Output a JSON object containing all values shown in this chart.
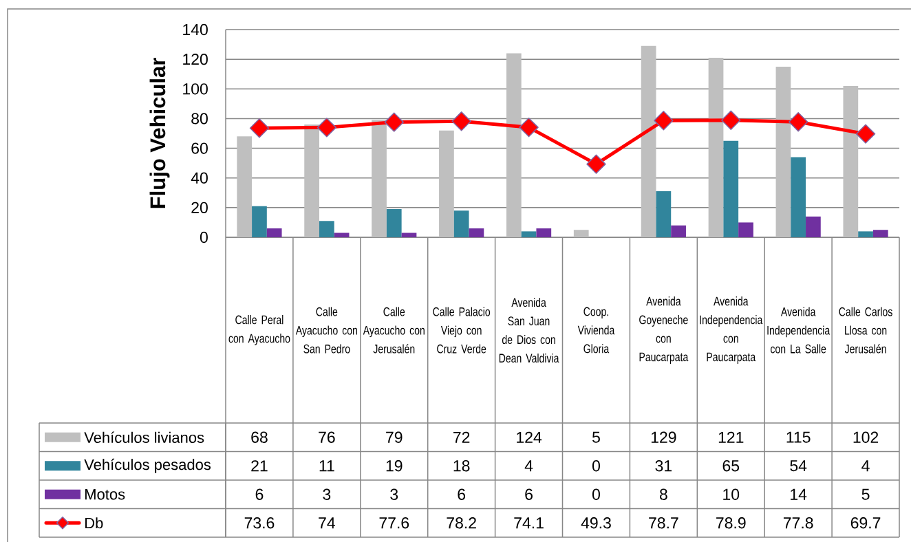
{
  "chart_data": {
    "type": "bar",
    "ylabel": "Flujo Vehicular",
    "categories": [
      "Calle Peral con Ayacucho",
      "Calle Ayacucho con San Pedro",
      "Calle Ayacucho con Jerusalén",
      "Calle Palacio Viejo con Cruz Verde",
      "Avenida San Juan de Dios con Dean Valdivia",
      "Coop. Vivienda Gloria",
      "Avenida Goyeneche con Paucarpata",
      "Avenida Independencia con Paucarpata",
      "Avenida Independencia con La Salle",
      "Calle Carlos Llosa con Jerusalén"
    ],
    "series": [
      {
        "name": "Vehículos livianos",
        "color": "#bfbfbf",
        "values": [
          68,
          76,
          79,
          72,
          124,
          5,
          129,
          121,
          115,
          102
        ]
      },
      {
        "name": "Vehículos pesados",
        "color": "#31859c",
        "values": [
          21,
          11,
          19,
          18,
          4,
          0,
          31,
          65,
          54,
          4
        ]
      },
      {
        "name": "Motos",
        "color": "#7030a0",
        "values": [
          6,
          3,
          3,
          6,
          6,
          0,
          8,
          10,
          14,
          5
        ]
      },
      {
        "name": "Db",
        "type": "line",
        "color": "#ff0000",
        "marker": "diamond",
        "values": [
          73.6,
          74,
          77.6,
          78.2,
          74.1,
          49.3,
          78.7,
          78.9,
          77.8,
          69.7
        ]
      }
    ],
    "ylim": [
      0,
      140
    ],
    "yticks": [
      0,
      20,
      40,
      60,
      80,
      100,
      120,
      140
    ],
    "grid": "y",
    "legend": "bottom",
    "data_labels": true
  }
}
